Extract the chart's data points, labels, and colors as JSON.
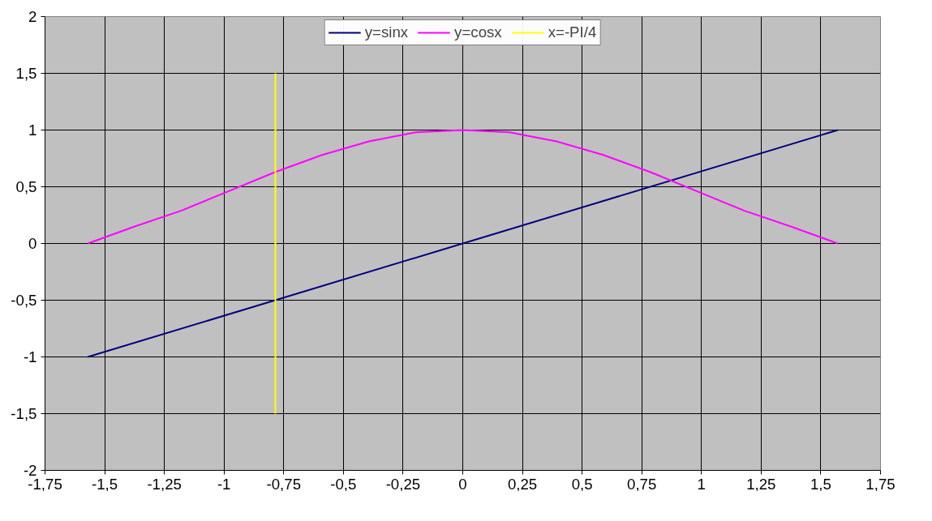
{
  "chart_data": {
    "type": "line",
    "x": [
      -1.571,
      -1.374,
      -1.178,
      -0.982,
      -0.785,
      -0.589,
      -0.393,
      -0.196,
      0,
      0.196,
      0.393,
      0.589,
      0.785,
      0.982,
      1.178,
      1.374,
      1.571
    ],
    "series": [
      {
        "name": "y=sinx",
        "color": "#000080",
        "x": [
          -1.571,
          0,
          1.571
        ],
        "values": [
          -1,
          0,
          1
        ]
      },
      {
        "name": "y=cosx",
        "color": "#ff00ff",
        "values": [
          0,
          0.15,
          0.29,
          0.46,
          0.63,
          0.78,
          0.9,
          0.98,
          1,
          0.98,
          0.9,
          0.78,
          0.63,
          0.46,
          0.29,
          0.15,
          0
        ]
      },
      {
        "name": "x=-PI/4",
        "color": "#ffff00",
        "x": [
          -0.785,
          -0.785
        ],
        "values": [
          -1.5,
          1.5
        ]
      }
    ],
    "xlim": [
      -1.75,
      1.75
    ],
    "xticks": [
      {
        "value": -1.75,
        "label": "-1,75"
      },
      {
        "value": -1.5,
        "label": "-1,5"
      },
      {
        "value": -1.25,
        "label": "-1,25"
      },
      {
        "value": -1,
        "label": "-1"
      },
      {
        "value": -0.75,
        "label": "-0,75"
      },
      {
        "value": -0.5,
        "label": "-0,5"
      },
      {
        "value": -0.25,
        "label": "-0,25"
      },
      {
        "value": 0,
        "label": "0"
      },
      {
        "value": 0.25,
        "label": "0,25"
      },
      {
        "value": 0.5,
        "label": "0,5"
      },
      {
        "value": 0.75,
        "label": "0,75"
      },
      {
        "value": 1,
        "label": "1"
      },
      {
        "value": 1.25,
        "label": "1,25"
      },
      {
        "value": 1.5,
        "label": "1,5"
      },
      {
        "value": 1.75,
        "label": "1,75"
      }
    ],
    "ylim": [
      -2,
      2
    ],
    "yticks": [
      {
        "value": -2,
        "label": "-2"
      },
      {
        "value": -1.5,
        "label": "-1,5"
      },
      {
        "value": -1,
        "label": "-1"
      },
      {
        "value": -0.5,
        "label": "-0,5"
      },
      {
        "value": 0,
        "label": "0"
      },
      {
        "value": 0.5,
        "label": "0,5"
      },
      {
        "value": 1,
        "label": "1"
      },
      {
        "value": 1.5,
        "label": "1,5"
      },
      {
        "value": 2,
        "label": "2"
      }
    ],
    "grid": true,
    "legend": "top",
    "marker": "none",
    "line_style": "solid"
  }
}
